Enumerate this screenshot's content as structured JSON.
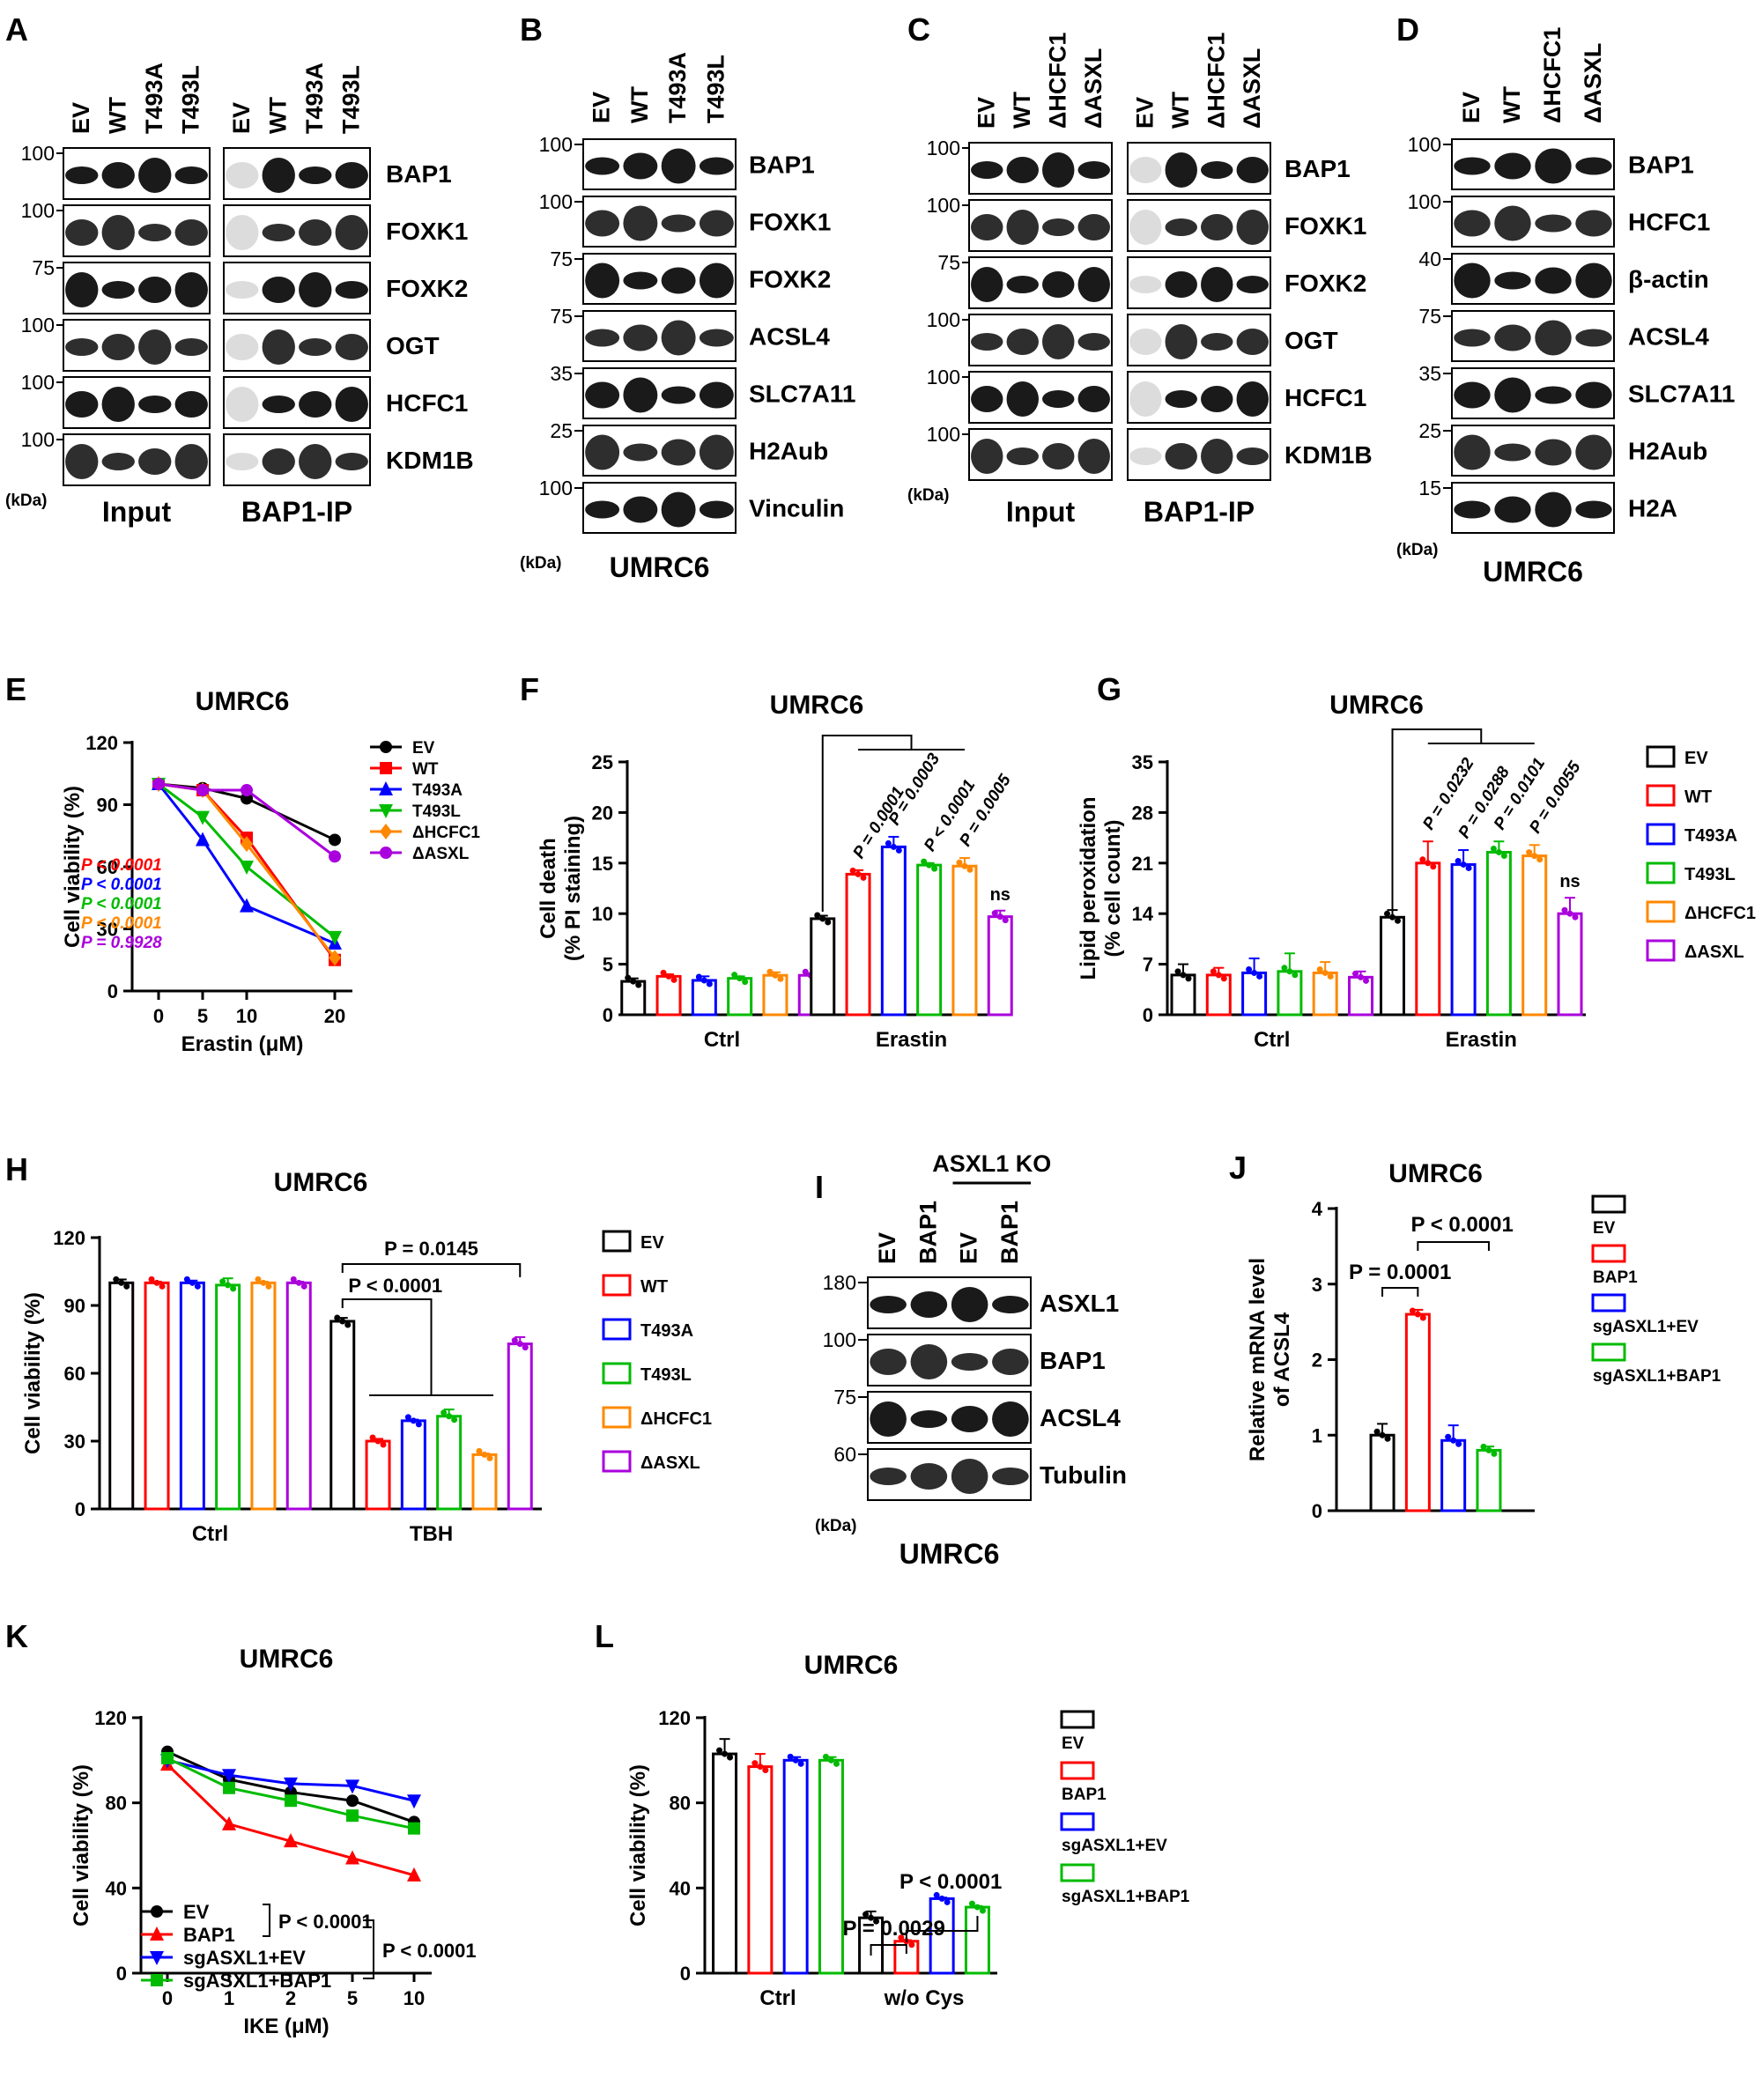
{
  "panels": {
    "A": {
      "letter": "A",
      "lanes": [
        "EV",
        "WT",
        "T493A",
        "T493L",
        "EV",
        "WT",
        "T493A",
        "T493L"
      ],
      "bands": [
        "BAP1",
        "FOXK1",
        "FOXK2",
        "OGT",
        "HCFC1",
        "KDM1B"
      ],
      "mw": [
        "100",
        "100",
        "75",
        "100",
        "100",
        "100"
      ],
      "kda": "(kDa)",
      "groups": [
        "Input",
        "BAP1-IP"
      ]
    },
    "B": {
      "letter": "B",
      "lanes": [
        "EV",
        "WT",
        "T493A",
        "T493L"
      ],
      "bands": [
        "BAP1",
        "FOXK1",
        "FOXK2",
        "ACSL4",
        "SLC7A11",
        "H2Aub",
        "Vinculin"
      ],
      "mw": [
        "100",
        "100",
        "75",
        "75",
        "35",
        "25",
        "100"
      ],
      "kda": "(kDa)",
      "cell": "UMRC6"
    },
    "C": {
      "letter": "C",
      "lanes": [
        "EV",
        "WT",
        "ΔHCFC1",
        "ΔASXL",
        "EV",
        "WT",
        "ΔHCFC1",
        "ΔASXL"
      ],
      "bands": [
        "BAP1",
        "FOXK1",
        "FOXK2",
        "OGT",
        "HCFC1",
        "KDM1B"
      ],
      "mw": [
        "100",
        "100",
        "75",
        "100",
        "100",
        "100"
      ],
      "kda": "(kDa)",
      "groups": [
        "Input",
        "BAP1-IP"
      ]
    },
    "D": {
      "letter": "D",
      "lanes": [
        "EV",
        "WT",
        "ΔHCFC1",
        "ΔASXL"
      ],
      "bands": [
        "BAP1",
        "HCFC1",
        "β-actin",
        "ACSL4",
        "SLC7A11",
        "H2Aub",
        "H2A"
      ],
      "mw": [
        "100",
        "100",
        "40",
        "75",
        "35",
        "25",
        "15"
      ],
      "kda": "(kDa)",
      "cell": "UMRC6"
    },
    "I": {
      "letter": "I",
      "header": "ASXL1 KO",
      "lanes": [
        "EV",
        "BAP1",
        "EV",
        "BAP1"
      ],
      "bands": [
        "ASXL1",
        "BAP1",
        "ACSL4",
        "Tubulin"
      ],
      "mw": [
        "180",
        "100",
        "75",
        "60"
      ],
      "kda": "(kDa)",
      "cell": "UMRC6"
    }
  },
  "colors": {
    "EV": "#000000",
    "WT": "#ff0000",
    "T493A": "#0000ff",
    "T493L": "#00bb00",
    "dHCFC1": "#ff8800",
    "dASXL": "#aa00dd"
  },
  "chart_data": [
    {
      "id": "E",
      "letter": "E",
      "type": "line",
      "title": "UMRC6",
      "xlabel": "Erastin (μM)",
      "ylabel": "Cell viability (%)",
      "xticks": [
        "0",
        "5",
        "10",
        "20"
      ],
      "yticks": [
        "0",
        "30",
        "60",
        "90",
        "120"
      ],
      "ylim": [
        0,
        120
      ],
      "series": [
        {
          "name": "EV",
          "color": "#000000",
          "marker": "circle",
          "values": [
            100,
            98,
            93,
            73
          ]
        },
        {
          "name": "WT",
          "color": "#ff0000",
          "marker": "square",
          "values": [
            100,
            97,
            74,
            15
          ]
        },
        {
          "name": "T493A",
          "color": "#0000ff",
          "marker": "triup",
          "values": [
            100,
            73,
            41,
            23
          ]
        },
        {
          "name": "T493L",
          "color": "#00bb00",
          "marker": "tridown",
          "values": [
            100,
            84,
            60,
            26
          ]
        },
        {
          "name": "ΔHCFC1",
          "color": "#ff8800",
          "marker": "diamond",
          "values": [
            100,
            97,
            71,
            16
          ]
        },
        {
          "name": "ΔASXL",
          "color": "#aa00dd",
          "marker": "circle",
          "values": [
            100,
            97,
            97,
            65
          ]
        }
      ],
      "pvalues": [
        {
          "text": "P < 0.0001",
          "color": "#ff0000"
        },
        {
          "text": "P < 0.0001",
          "color": "#0000ff"
        },
        {
          "text": "P < 0.0001",
          "color": "#00bb00"
        },
        {
          "text": "P < 0.0001",
          "color": "#ff8800"
        },
        {
          "text": "P = 0.9928",
          "color": "#aa00dd"
        }
      ]
    },
    {
      "id": "F",
      "letter": "F",
      "type": "bar",
      "title": "UMRC6",
      "ylabel": [
        "Cell death",
        "(% PI staining)"
      ],
      "categories": [
        "Ctrl",
        "Erastin"
      ],
      "yticks": [
        "0",
        "5",
        "10",
        "15",
        "20",
        "25"
      ],
      "ylim": [
        0,
        25
      ],
      "series": [
        {
          "name": "EV",
          "color": "#000000",
          "values": [
            3.3,
            9.5
          ],
          "err": [
            0.3,
            0.3
          ]
        },
        {
          "name": "WT",
          "color": "#ff0000",
          "values": [
            3.8,
            13.9
          ],
          "err": [
            0.2,
            0.4
          ]
        },
        {
          "name": "T493A",
          "color": "#0000ff",
          "values": [
            3.4,
            16.6
          ],
          "err": [
            0.4,
            1.0
          ]
        },
        {
          "name": "T493L",
          "color": "#00bb00",
          "values": [
            3.6,
            14.8
          ],
          "err": [
            0.2,
            0.2
          ]
        },
        {
          "name": "ΔHCFC1",
          "color": "#ff8800",
          "values": [
            3.9,
            14.7
          ],
          "err": [
            0.3,
            0.8
          ]
        },
        {
          "name": "ΔASXL",
          "color": "#aa00dd",
          "values": [
            3.9,
            9.7
          ],
          "err": [
            0.2,
            0.6
          ]
        }
      ],
      "annotations": [
        "P = 0.0001",
        "P = 0.0003",
        "P < 0.0001",
        "P = 0.0005",
        "ns"
      ]
    },
    {
      "id": "G",
      "letter": "G",
      "type": "bar",
      "title": "UMRC6",
      "ylabel": [
        "Lipid peroxidation",
        "(% cell count)"
      ],
      "categories": [
        "Ctrl",
        "Erastin"
      ],
      "yticks": [
        "0",
        "7",
        "14",
        "21",
        "28",
        "35"
      ],
      "ylim": [
        0,
        35
      ],
      "series": [
        {
          "name": "EV",
          "color": "#000000",
          "values": [
            5.5,
            13.5
          ],
          "err": [
            1.5,
            1.0
          ]
        },
        {
          "name": "WT",
          "color": "#ff0000",
          "values": [
            5.5,
            21.0
          ],
          "err": [
            1.0,
            3.0
          ]
        },
        {
          "name": "T493A",
          "color": "#0000ff",
          "values": [
            5.8,
            20.8
          ],
          "err": [
            2.0,
            2.0
          ]
        },
        {
          "name": "T493L",
          "color": "#00bb00",
          "values": [
            6.0,
            22.5
          ],
          "err": [
            2.5,
            1.5
          ]
        },
        {
          "name": "ΔHCFC1",
          "color": "#ff8800",
          "values": [
            5.8,
            22.0
          ],
          "err": [
            1.5,
            1.5
          ]
        },
        {
          "name": "ΔASXL",
          "color": "#aa00dd",
          "values": [
            5.2,
            14.0
          ],
          "err": [
            0.8,
            2.2
          ]
        }
      ],
      "annotations": [
        "P = 0.0232",
        "P = 0.0288",
        "P = 0.0101",
        "P = 0.0055",
        "ns"
      ],
      "legend": [
        "EV",
        "WT",
        "T493A",
        "T493L",
        "ΔHCFC1",
        "ΔASXL"
      ]
    },
    {
      "id": "H",
      "letter": "H",
      "type": "bar",
      "title": "UMRC6",
      "ylabel": [
        "Cell viability (%)"
      ],
      "categories": [
        "Ctrl",
        "TBH"
      ],
      "yticks": [
        "0",
        "30",
        "60",
        "90",
        "120"
      ],
      "ylim": [
        0,
        120
      ],
      "series": [
        {
          "name": "EV",
          "color": "#000000",
          "values": [
            100,
            83
          ],
          "err": [
            1.5,
            1.5
          ]
        },
        {
          "name": "WT",
          "color": "#ff0000",
          "values": [
            100,
            30
          ],
          "err": [
            0.5,
            1.0
          ]
        },
        {
          "name": "T493A",
          "color": "#0000ff",
          "values": [
            100,
            39
          ],
          "err": [
            1.0,
            0.5
          ]
        },
        {
          "name": "T493L",
          "color": "#00bb00",
          "values": [
            99,
            41
          ],
          "err": [
            3.0,
            3.0
          ]
        },
        {
          "name": "ΔHCFC1",
          "color": "#ff8800",
          "values": [
            100,
            24
          ],
          "err": [
            0.5,
            0.5
          ]
        },
        {
          "name": "ΔASXL",
          "color": "#aa00dd",
          "values": [
            100,
            73
          ],
          "err": [
            0.5,
            3.0
          ]
        }
      ],
      "annotations": [
        "P = 0.0145",
        "P < 0.0001"
      ],
      "legend": [
        "EV",
        "WT",
        "T493A",
        "T493L",
        "ΔHCFC1",
        "ΔASXL"
      ]
    },
    {
      "id": "J",
      "letter": "J",
      "type": "bar",
      "title": "UMRC6",
      "ylabel": [
        "Relative mRNA level",
        "of ACSL4"
      ],
      "categories": [
        ""
      ],
      "yticks": [
        "0",
        "1",
        "2",
        "3",
        "4"
      ],
      "ylim": [
        0,
        4
      ],
      "series": [
        {
          "name": "EV",
          "color": "#000000",
          "values": [
            1.0
          ],
          "err": [
            0.15
          ]
        },
        {
          "name": "BAP1",
          "color": "#ff0000",
          "values": [
            2.6
          ],
          "err": [
            0.06
          ]
        },
        {
          "name": "sgASXL1+EV",
          "color": "#0000ff",
          "values": [
            0.93
          ],
          "err": [
            0.2
          ]
        },
        {
          "name": "sgASXL1+BAP1",
          "color": "#00bb00",
          "values": [
            0.8
          ],
          "err": [
            0.05
          ]
        }
      ],
      "annotations": [
        "P = 0.0001",
        "P < 0.0001"
      ],
      "legend": [
        "EV",
        "BAP1",
        "sgASXL1+EV",
        "sgASXL1+BAP1"
      ]
    },
    {
      "id": "K",
      "letter": "K",
      "type": "line",
      "title": "UMRC6",
      "xlabel": "IKE (μM)",
      "ylabel": "Cell viability (%)",
      "xticks": [
        "0",
        "1",
        "2",
        "5",
        "10"
      ],
      "yticks": [
        "0",
        "40",
        "80",
        "120"
      ],
      "ylim": [
        0,
        120
      ],
      "series": [
        {
          "name": "EV",
          "color": "#000000",
          "marker": "circle",
          "values": [
            104,
            91,
            85,
            81,
            71
          ]
        },
        {
          "name": "BAP1",
          "color": "#ff0000",
          "marker": "triup",
          "values": [
            98,
            70,
            62,
            54,
            46
          ]
        },
        {
          "name": "sgASXL1+EV",
          "color": "#0000ff",
          "marker": "tridown",
          "values": [
            100,
            93,
            89,
            88,
            81
          ]
        },
        {
          "name": "sgASXL1+BAP1",
          "color": "#00bb00",
          "marker": "square",
          "values": [
            101,
            87,
            81,
            74,
            68
          ]
        }
      ],
      "annotations": [
        "P < 0.0001",
        "P < 0.0001"
      ]
    },
    {
      "id": "L",
      "letter": "L",
      "type": "bar",
      "title": "UMRC6",
      "ylabel": [
        "Cell viability (%)"
      ],
      "categories": [
        "Ctrl",
        "w/o Cys"
      ],
      "yticks": [
        "0",
        "40",
        "80",
        "120"
      ],
      "ylim": [
        0,
        120
      ],
      "series": [
        {
          "name": "EV",
          "color": "#000000",
          "values": [
            103,
            26
          ],
          "err": [
            7,
            3
          ]
        },
        {
          "name": "BAP1",
          "color": "#ff0000",
          "values": [
            97,
            15
          ],
          "err": [
            6,
            0.5
          ]
        },
        {
          "name": "sgASXL1+EV",
          "color": "#0000ff",
          "values": [
            100,
            35
          ],
          "err": [
            1.5,
            0.5
          ]
        },
        {
          "name": "sgASXL1+BAP1",
          "color": "#00bb00",
          "values": [
            100,
            31
          ],
          "err": [
            1.5,
            0.5
          ]
        }
      ],
      "annotations": [
        "P = 0.0029",
        "P < 0.0001"
      ],
      "legend": [
        "EV",
        "BAP1",
        "sgASXL1+EV",
        "sgASXL1+BAP1"
      ]
    }
  ]
}
